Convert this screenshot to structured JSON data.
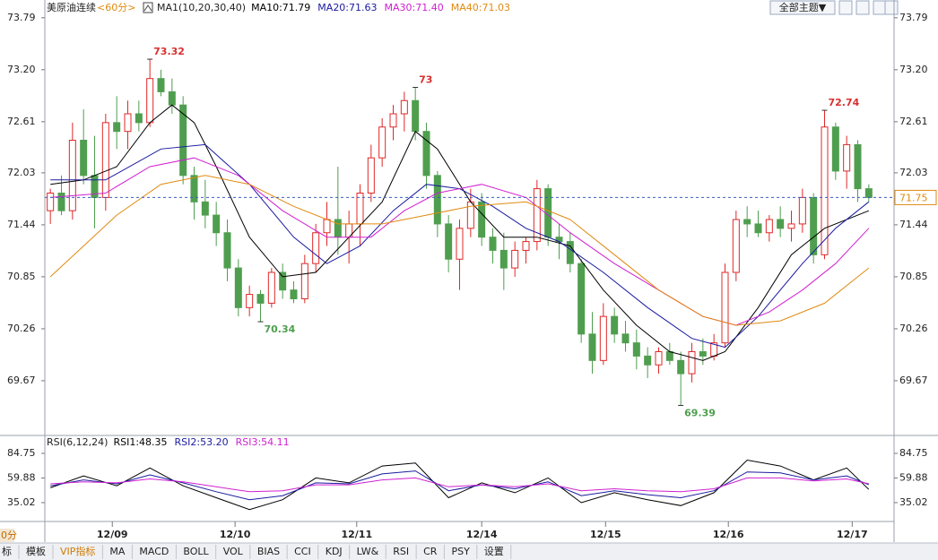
{
  "header": {
    "symbol": "美原油连续",
    "period": "<60分>",
    "theme_button": "全部主题▼"
  },
  "chart_data": [
    {
      "type": "candlestick",
      "title": "MA1(10,20,30,40)",
      "up_color": "#e02828",
      "down_color": "#4f9e4f",
      "candles": [
        [
          71.6,
          71.85,
          71.45,
          71.8
        ],
        [
          71.8,
          72.0,
          71.55,
          71.6
        ],
        [
          71.6,
          72.6,
          71.5,
          72.4
        ],
        [
          72.4,
          72.75,
          71.9,
          72.0
        ],
        [
          72.0,
          72.45,
          71.4,
          71.75
        ],
        [
          71.75,
          72.7,
          71.6,
          72.6
        ],
        [
          72.6,
          72.9,
          72.3,
          72.5
        ],
        [
          72.5,
          72.85,
          72.3,
          72.7
        ],
        [
          72.7,
          72.85,
          72.5,
          72.6
        ],
        [
          72.6,
          73.32,
          72.55,
          73.1
        ],
        [
          73.1,
          73.2,
          72.9,
          72.95
        ],
        [
          72.95,
          73.1,
          72.7,
          72.8
        ],
        [
          72.8,
          72.9,
          71.9,
          72.0
        ],
        [
          72.0,
          72.1,
          71.5,
          71.7
        ],
        [
          71.7,
          71.95,
          71.4,
          71.55
        ],
        [
          71.55,
          71.7,
          71.2,
          71.35
        ],
        [
          71.35,
          71.5,
          70.8,
          70.95
        ],
        [
          70.95,
          71.05,
          70.4,
          70.5
        ],
        [
          70.5,
          70.75,
          70.4,
          70.65
        ],
        [
          70.65,
          70.7,
          70.34,
          70.55
        ],
        [
          70.55,
          70.95,
          70.5,
          70.9
        ],
        [
          70.9,
          71.0,
          70.6,
          70.7
        ],
        [
          70.7,
          70.8,
          70.55,
          70.6
        ],
        [
          70.6,
          71.1,
          70.55,
          71.0
        ],
        [
          71.0,
          71.45,
          70.9,
          71.35
        ],
        [
          71.35,
          71.7,
          71.2,
          71.5
        ],
        [
          71.5,
          72.1,
          71.1,
          71.3
        ],
        [
          71.3,
          71.6,
          71.0,
          71.45
        ],
        [
          71.45,
          71.9,
          71.2,
          71.8
        ],
        [
          71.8,
          72.35,
          71.7,
          72.2
        ],
        [
          72.2,
          72.65,
          72.1,
          72.55
        ],
        [
          72.55,
          72.8,
          72.4,
          72.7
        ],
        [
          72.7,
          72.95,
          72.5,
          72.85
        ],
        [
          72.85,
          73.0,
          72.4,
          72.5
        ],
        [
          72.5,
          72.6,
          71.85,
          72.0
        ],
        [
          72.0,
          72.05,
          71.3,
          71.45
        ],
        [
          71.45,
          71.55,
          70.9,
          71.05
        ],
        [
          71.05,
          71.5,
          70.7,
          71.4
        ],
        [
          71.4,
          71.85,
          71.3,
          71.7
        ],
        [
          71.7,
          71.8,
          71.2,
          71.3
        ],
        [
          71.3,
          71.4,
          71.0,
          71.15
        ],
        [
          71.15,
          71.35,
          70.7,
          70.95
        ],
        [
          70.95,
          71.25,
          70.85,
          71.15
        ],
        [
          71.15,
          71.3,
          71.0,
          71.25
        ],
        [
          71.25,
          71.95,
          71.15,
          71.85
        ],
        [
          71.85,
          71.9,
          71.2,
          71.3
        ],
        [
          71.3,
          71.45,
          71.05,
          71.25
        ],
        [
          71.25,
          71.35,
          70.9,
          71.0
        ],
        [
          71.0,
          71.05,
          70.1,
          70.2
        ],
        [
          70.2,
          70.45,
          69.75,
          69.9
        ],
        [
          69.9,
          70.55,
          69.85,
          70.4
        ],
        [
          70.4,
          70.5,
          70.1,
          70.2
        ],
        [
          70.2,
          70.35,
          70.0,
          70.1
        ],
        [
          70.1,
          70.25,
          69.8,
          69.95
        ],
        [
          69.95,
          70.05,
          69.7,
          69.85
        ],
        [
          69.85,
          70.05,
          69.75,
          70.0
        ],
        [
          70.0,
          70.1,
          69.85,
          69.9
        ],
        [
          69.9,
          70.0,
          69.39,
          69.75
        ],
        [
          69.75,
          70.1,
          69.65,
          70.0
        ],
        [
          70.0,
          70.15,
          69.85,
          69.95
        ],
        [
          69.95,
          70.2,
          69.9,
          70.1
        ],
        [
          70.1,
          71.0,
          70.05,
          70.9
        ],
        [
          70.9,
          71.6,
          70.8,
          71.5
        ],
        [
          71.5,
          71.65,
          71.3,
          71.45
        ],
        [
          71.45,
          71.6,
          71.3,
          71.35
        ],
        [
          71.35,
          71.55,
          71.25,
          71.5
        ],
        [
          71.5,
          71.65,
          71.3,
          71.4
        ],
        [
          71.4,
          71.6,
          71.25,
          71.45
        ],
        [
          71.45,
          71.85,
          71.35,
          71.75
        ],
        [
          71.75,
          71.8,
          71.0,
          71.1
        ],
        [
          71.1,
          72.74,
          71.05,
          72.55
        ],
        [
          72.55,
          72.6,
          71.95,
          72.05
        ],
        [
          72.05,
          72.45,
          71.85,
          72.35
        ],
        [
          72.35,
          72.4,
          71.7,
          71.85
        ],
        [
          71.85,
          71.9,
          71.7,
          71.75
        ]
      ],
      "series": [
        {
          "name": "MA10:71.79",
          "color": "#000000",
          "x": [
            0,
            3,
            6,
            9,
            11,
            13,
            15,
            18,
            21,
            24,
            27,
            30,
            33,
            35,
            38,
            41,
            44,
            47,
            50,
            53,
            56,
            59,
            61,
            64,
            67,
            70,
            74
          ],
          "values": [
            71.9,
            71.95,
            72.1,
            72.6,
            72.8,
            72.6,
            72.1,
            71.3,
            70.85,
            70.9,
            71.3,
            71.7,
            72.5,
            72.3,
            71.7,
            71.3,
            71.3,
            71.2,
            70.7,
            70.3,
            70.0,
            69.9,
            70.0,
            70.5,
            71.1,
            71.4,
            71.6
          ]
        },
        {
          "name": "MA20:71.63",
          "color": "#1a1aa0",
          "x": [
            0,
            5,
            10,
            14,
            18,
            22,
            25,
            28,
            31,
            34,
            37,
            40,
            43,
            46,
            50,
            54,
            58,
            61,
            64,
            68,
            71,
            74
          ],
          "values": [
            71.95,
            71.95,
            72.3,
            72.35,
            71.9,
            71.3,
            71.0,
            71.2,
            71.6,
            71.9,
            71.85,
            71.65,
            71.4,
            71.25,
            70.9,
            70.5,
            70.15,
            70.05,
            70.4,
            71.0,
            71.4,
            71.7
          ]
        },
        {
          "name": "MA30:71.40",
          "color": "#d020d0",
          "x": [
            0,
            5,
            9,
            13,
            17,
            21,
            25,
            29,
            32,
            35,
            39,
            43,
            47,
            51,
            55,
            59,
            62,
            65,
            68,
            71,
            74
          ],
          "values": [
            71.75,
            71.8,
            72.1,
            72.2,
            72.0,
            71.6,
            71.3,
            71.3,
            71.6,
            71.8,
            71.9,
            71.75,
            71.35,
            71.0,
            70.7,
            70.4,
            70.3,
            70.45,
            70.7,
            71.0,
            71.4
          ]
        },
        {
          "name": "MA40:71.03",
          "color": "#e08a10",
          "x": [
            0,
            3,
            6,
            10,
            14,
            18,
            22,
            26,
            30,
            34,
            38,
            43,
            47,
            51,
            55,
            59,
            62,
            66,
            70,
            74
          ],
          "values": [
            70.85,
            71.2,
            71.55,
            71.9,
            72.0,
            71.9,
            71.65,
            71.45,
            71.45,
            71.55,
            71.65,
            71.7,
            71.5,
            71.1,
            70.7,
            70.4,
            70.3,
            70.35,
            70.55,
            70.95
          ]
        }
      ],
      "ylim": [
        69.11,
        73.89
      ],
      "yticks": [
        73.79,
        {
          "value": 73.2,
          "label": "73.20"
        },
        72.61,
        72.03,
        71.44,
        70.85,
        70.26,
        69.67
      ]
    },
    {
      "type": "line",
      "title": "RSI(6,12,24)",
      "series": [
        {
          "name": "RSI1:48.35",
          "color": "#000000",
          "x": [
            0,
            3,
            6,
            9,
            12,
            15,
            18,
            21,
            24,
            27,
            30,
            33,
            36,
            39,
            42,
            45,
            48,
            51,
            54,
            57,
            60,
            63,
            66,
            69,
            72,
            74
          ],
          "values": [
            50,
            62,
            52,
            70,
            52,
            40,
            28,
            38,
            60,
            55,
            72,
            75,
            40,
            55,
            45,
            60,
            35,
            45,
            38,
            32,
            45,
            78,
            72,
            58,
            70,
            48.35
          ]
        },
        {
          "name": "RSI2:53.20",
          "color": "#1a1aa0",
          "x": [
            0,
            3,
            6,
            9,
            12,
            15,
            18,
            21,
            24,
            27,
            30,
            33,
            36,
            39,
            42,
            45,
            48,
            51,
            54,
            57,
            60,
            63,
            66,
            69,
            72,
            74
          ],
          "values": [
            52,
            58,
            54,
            63,
            55,
            46,
            38,
            42,
            55,
            54,
            64,
            67,
            47,
            53,
            49,
            56,
            42,
            47,
            43,
            40,
            47,
            66,
            65,
            58,
            62,
            53.2
          ]
        },
        {
          "name": "RSI3:54.11",
          "color": "#d020d0",
          "x": [
            0,
            3,
            6,
            9,
            12,
            15,
            18,
            21,
            24,
            27,
            30,
            33,
            36,
            39,
            42,
            45,
            48,
            51,
            54,
            57,
            60,
            63,
            66,
            69,
            72,
            74
          ],
          "values": [
            54,
            56,
            55,
            59,
            56,
            51,
            46,
            47,
            53,
            53,
            58,
            60,
            51,
            53,
            51,
            54,
            47,
            49,
            47,
            46,
            49,
            60,
            60,
            57,
            59,
            54.11
          ]
        }
      ],
      "ylim": [
        19.6,
        94.7
      ],
      "yticks": [
        84.75,
        59.88,
        35.02
      ],
      "xticks": [
        {
          "value": 5.6,
          "label": "12/09"
        },
        {
          "value": 16.7,
          "label": "12/10"
        },
        {
          "value": 27.7,
          "label": "12/11"
        },
        {
          "value": 39,
          "label": "12/14"
        },
        {
          "value": 50.2,
          "label": "12/15"
        },
        {
          "value": 61.3,
          "label": "12/16"
        },
        {
          "value": 72.5,
          "label": "12/17"
        }
      ]
    }
  ],
  "period_tab": "0分",
  "tabs": [
    "标",
    "模板",
    "VIP指标",
    "MA",
    "MACD",
    "BOLL",
    "VOL",
    "BIAS",
    "CCI",
    "KDJ",
    "LW&",
    "RSI",
    "CR",
    "PSY",
    "设置"
  ]
}
